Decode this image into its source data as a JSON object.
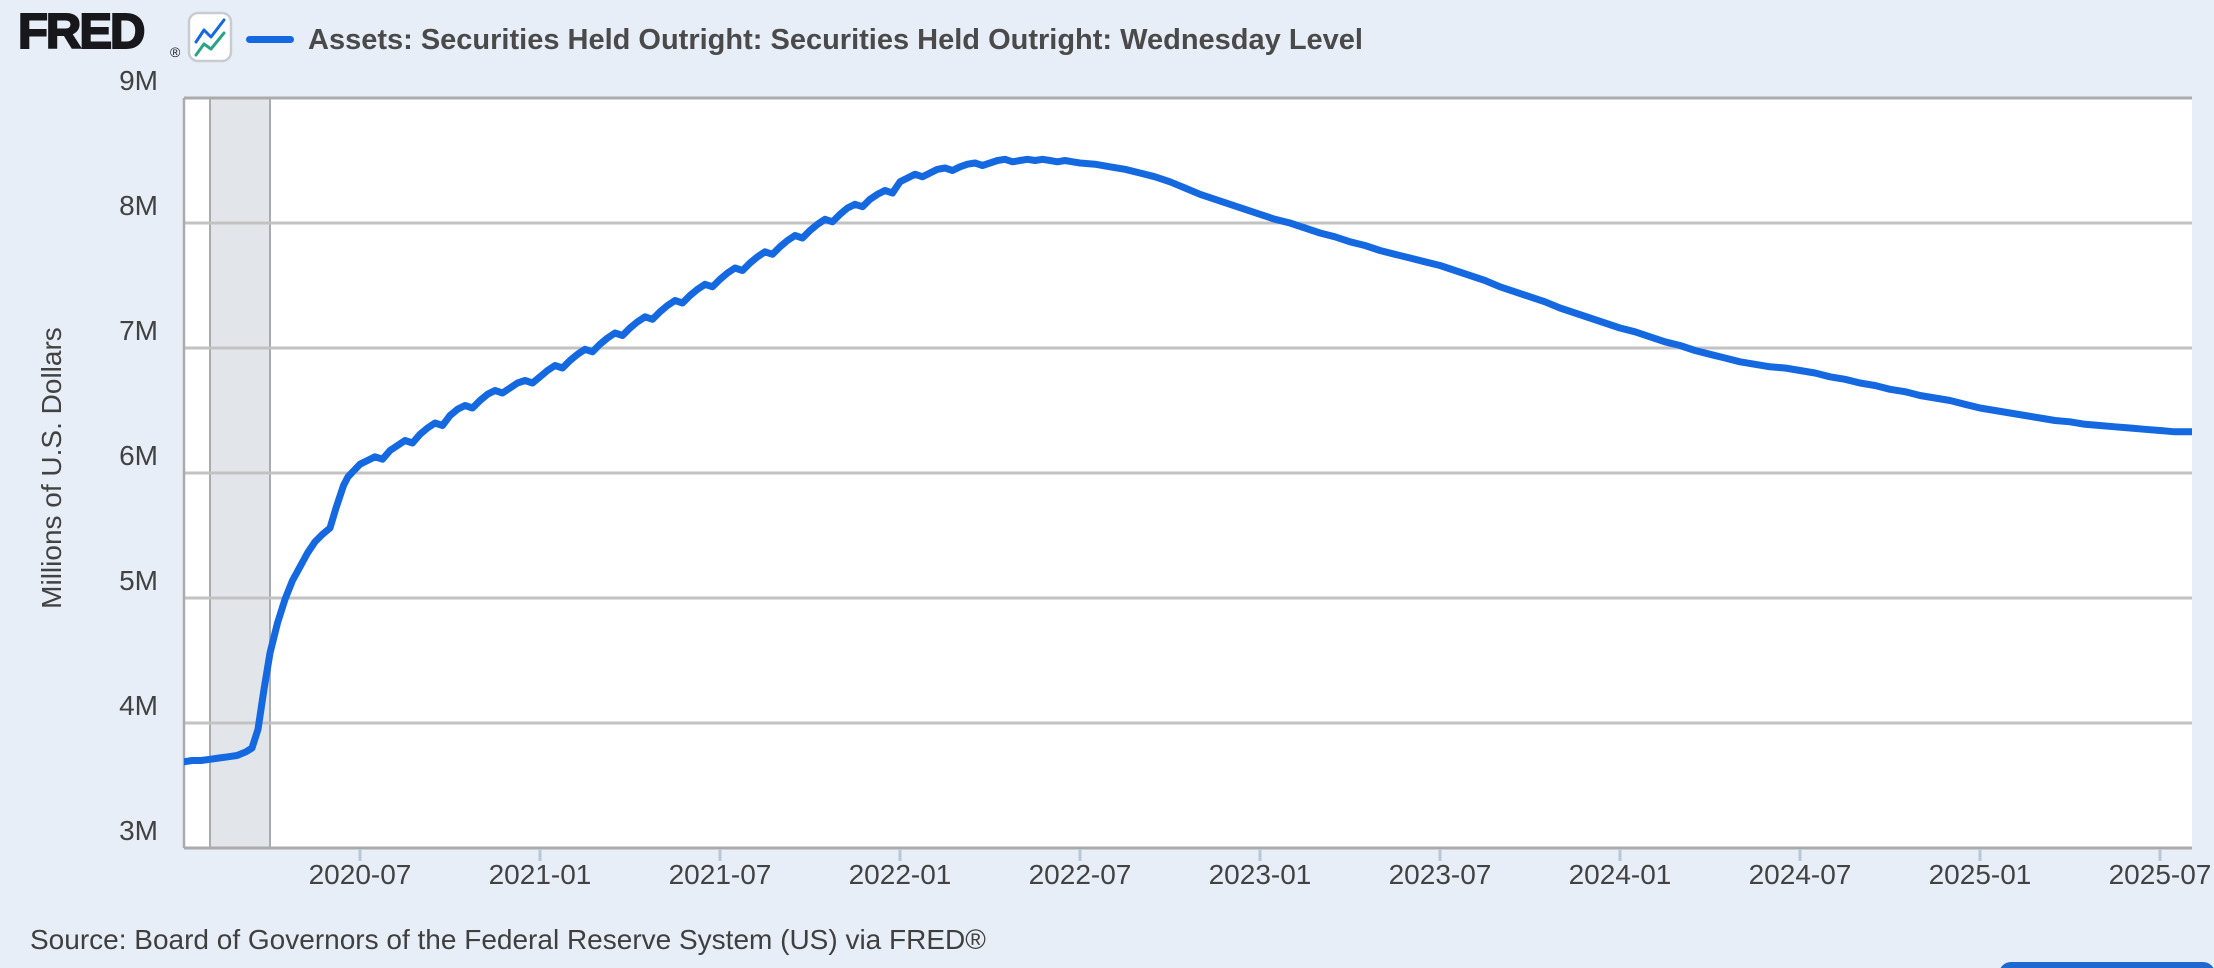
{
  "header": {
    "logo_text": "FRED",
    "logo_registered": "®",
    "title": "Assets: Securities Held Outright: Securities Held Outright: Wednesday Level"
  },
  "footer": {
    "source_text": "Source: Board of Governors of the Federal Reserve System (US) via FRED®"
  },
  "colors": {
    "page_background": "#e7eef7",
    "plot_background": "#ffffff",
    "series_line": "#1569e0",
    "icon_teal": "#2aa389",
    "gridline": "#c2c2c2",
    "plot_border": "#ababab",
    "recession_band_fill": "#e2e6ea",
    "recession_band_edge": "#a7acb1",
    "axis_tick": "#b9c7d6",
    "text": "#424242",
    "button_blue": "#1e68d2"
  },
  "chart_data": {
    "type": "line",
    "title": "Assets: Securities Held Outright: Securities Held Outright: Wednesday Level",
    "xlabel": "",
    "ylabel": "Millions of U.S. Dollars",
    "x_epoch_month": "2020-01",
    "x_range_months": [
      0.13,
      67.07
    ],
    "ylim": [
      3000000,
      9000000
    ],
    "grid": "horizontal-only",
    "legend_position": "top-left",
    "units": "Millions of U.S. Dollars, M = millions of millions label shorthand",
    "y_ticks": [
      {
        "label": "9M",
        "value": 9
      },
      {
        "label": "8M",
        "value": 8
      },
      {
        "label": "7M",
        "value": 7
      },
      {
        "label": "6M",
        "value": 6
      },
      {
        "label": "5M",
        "value": 5
      },
      {
        "label": "4M",
        "value": 4
      },
      {
        "label": "3M",
        "value": 3
      }
    ],
    "x_ticks": [
      {
        "label": "2020-07",
        "month": 6
      },
      {
        "label": "2021-01",
        "month": 12
      },
      {
        "label": "2021-07",
        "month": 18
      },
      {
        "label": "2022-01",
        "month": 24
      },
      {
        "label": "2022-07",
        "month": 30
      },
      {
        "label": "2023-01",
        "month": 36
      },
      {
        "label": "2023-07",
        "month": 42
      },
      {
        "label": "2024-01",
        "month": 48
      },
      {
        "label": "2024-07",
        "month": 54
      },
      {
        "label": "2025-01",
        "month": 60
      },
      {
        "label": "2025-07",
        "month": 66
      }
    ],
    "recession_band_months": {
      "start": 1,
      "end": 3,
      "note": "Feb 2020 - Apr 2020 shaded band"
    },
    "series": [
      {
        "name": "Assets: Securities Held Outright: Securities Held Outright: Wednesday Level",
        "color": "#1569e0",
        "points_format": [
          "months_since_2020_01",
          "millions_of_usd_in_M"
        ],
        "points": [
          [
            0.13,
            3.69
          ],
          [
            0.4,
            3.7
          ],
          [
            0.7,
            3.7
          ],
          [
            1.0,
            3.71
          ],
          [
            1.3,
            3.72
          ],
          [
            1.6,
            3.73
          ],
          [
            1.9,
            3.74
          ],
          [
            2.2,
            3.77
          ],
          [
            2.4,
            3.8
          ],
          [
            2.6,
            3.95
          ],
          [
            2.8,
            4.27
          ],
          [
            3.0,
            4.56
          ],
          [
            3.25,
            4.8
          ],
          [
            3.5,
            4.99
          ],
          [
            3.75,
            5.14
          ],
          [
            4.0,
            5.25
          ],
          [
            4.25,
            5.36
          ],
          [
            4.5,
            5.45
          ],
          [
            4.75,
            5.51
          ],
          [
            5.0,
            5.56
          ],
          [
            5.2,
            5.72
          ],
          [
            5.45,
            5.9
          ],
          [
            5.6,
            5.97
          ],
          [
            5.8,
            6.02
          ],
          [
            6.0,
            6.07
          ],
          [
            6.25,
            6.1
          ],
          [
            6.5,
            6.13
          ],
          [
            6.75,
            6.11
          ],
          [
            7.0,
            6.18
          ],
          [
            7.25,
            6.22
          ],
          [
            7.5,
            6.26
          ],
          [
            7.75,
            6.24
          ],
          [
            8.0,
            6.31
          ],
          [
            8.25,
            6.36
          ],
          [
            8.5,
            6.4
          ],
          [
            8.75,
            6.38
          ],
          [
            9.0,
            6.46
          ],
          [
            9.25,
            6.51
          ],
          [
            9.5,
            6.54
          ],
          [
            9.75,
            6.52
          ],
          [
            10.0,
            6.58
          ],
          [
            10.25,
            6.63
          ],
          [
            10.5,
            6.66
          ],
          [
            10.75,
            6.64
          ],
          [
            11.0,
            6.68
          ],
          [
            11.25,
            6.72
          ],
          [
            11.5,
            6.74
          ],
          [
            11.75,
            6.72
          ],
          [
            12.0,
            6.77
          ],
          [
            12.25,
            6.82
          ],
          [
            12.5,
            6.86
          ],
          [
            12.75,
            6.84
          ],
          [
            13.0,
            6.9
          ],
          [
            13.25,
            6.95
          ],
          [
            13.5,
            6.99
          ],
          [
            13.75,
            6.97
          ],
          [
            14.0,
            7.03
          ],
          [
            14.25,
            7.08
          ],
          [
            14.5,
            7.12
          ],
          [
            14.75,
            7.1
          ],
          [
            15.0,
            7.16
          ],
          [
            15.25,
            7.21
          ],
          [
            15.5,
            7.25
          ],
          [
            15.75,
            7.23
          ],
          [
            16.0,
            7.29
          ],
          [
            16.25,
            7.34
          ],
          [
            16.5,
            7.38
          ],
          [
            16.75,
            7.36
          ],
          [
            17.0,
            7.42
          ],
          [
            17.25,
            7.47
          ],
          [
            17.5,
            7.51
          ],
          [
            17.75,
            7.49
          ],
          [
            18.0,
            7.55
          ],
          [
            18.25,
            7.6
          ],
          [
            18.5,
            7.64
          ],
          [
            18.75,
            7.62
          ],
          [
            19.0,
            7.68
          ],
          [
            19.25,
            7.73
          ],
          [
            19.5,
            7.77
          ],
          [
            19.75,
            7.75
          ],
          [
            20.0,
            7.81
          ],
          [
            20.25,
            7.86
          ],
          [
            20.5,
            7.9
          ],
          [
            20.75,
            7.88
          ],
          [
            21.0,
            7.94
          ],
          [
            21.25,
            7.99
          ],
          [
            21.5,
            8.03
          ],
          [
            21.75,
            8.01
          ],
          [
            22.0,
            8.07
          ],
          [
            22.25,
            8.12
          ],
          [
            22.5,
            8.15
          ],
          [
            22.75,
            8.13
          ],
          [
            23.0,
            8.19
          ],
          [
            23.25,
            8.23
          ],
          [
            23.5,
            8.26
          ],
          [
            23.75,
            8.24
          ],
          [
            24.0,
            8.33
          ],
          [
            24.25,
            8.36
          ],
          [
            24.5,
            8.39
          ],
          [
            24.75,
            8.37
          ],
          [
            25.0,
            8.4
          ],
          [
            25.25,
            8.43
          ],
          [
            25.5,
            8.44
          ],
          [
            25.75,
            8.42
          ],
          [
            26.0,
            8.45
          ],
          [
            26.25,
            8.47
          ],
          [
            26.5,
            8.48
          ],
          [
            26.75,
            8.46
          ],
          [
            27.0,
            8.48
          ],
          [
            27.25,
            8.5
          ],
          [
            27.5,
            8.51
          ],
          [
            27.75,
            8.49
          ],
          [
            28.0,
            8.5
          ],
          [
            28.25,
            8.51
          ],
          [
            28.5,
            8.5
          ],
          [
            28.75,
            8.51
          ],
          [
            29.0,
            8.5
          ],
          [
            29.25,
            8.49
          ],
          [
            29.5,
            8.5
          ],
          [
            29.75,
            8.49
          ],
          [
            30.0,
            8.48
          ],
          [
            30.5,
            8.47
          ],
          [
            31.0,
            8.45
          ],
          [
            31.5,
            8.43
          ],
          [
            32.0,
            8.4
          ],
          [
            32.5,
            8.37
          ],
          [
            33.0,
            8.33
          ],
          [
            33.5,
            8.28
          ],
          [
            34.0,
            8.23
          ],
          [
            34.5,
            8.19
          ],
          [
            35.0,
            8.15
          ],
          [
            35.5,
            8.11
          ],
          [
            36.0,
            8.07
          ],
          [
            36.5,
            8.03
          ],
          [
            37.0,
            8.0
          ],
          [
            37.5,
            7.96
          ],
          [
            38.0,
            7.92
          ],
          [
            38.5,
            7.89
          ],
          [
            39.0,
            7.85
          ],
          [
            39.5,
            7.82
          ],
          [
            40.0,
            7.78
          ],
          [
            40.5,
            7.75
          ],
          [
            41.0,
            7.72
          ],
          [
            41.5,
            7.69
          ],
          [
            42.0,
            7.66
          ],
          [
            42.5,
            7.62
          ],
          [
            43.0,
            7.58
          ],
          [
            43.5,
            7.54
          ],
          [
            44.0,
            7.49
          ],
          [
            44.5,
            7.45
          ],
          [
            45.0,
            7.41
          ],
          [
            45.5,
            7.37
          ],
          [
            46.0,
            7.32
          ],
          [
            46.5,
            7.28
          ],
          [
            47.0,
            7.24
          ],
          [
            47.5,
            7.2
          ],
          [
            48.0,
            7.16
          ],
          [
            48.5,
            7.13
          ],
          [
            49.0,
            7.09
          ],
          [
            49.5,
            7.05
          ],
          [
            50.0,
            7.02
          ],
          [
            50.5,
            6.98
          ],
          [
            51.0,
            6.95
          ],
          [
            51.5,
            6.92
          ],
          [
            52.0,
            6.89
          ],
          [
            52.5,
            6.87
          ],
          [
            53.0,
            6.85
          ],
          [
            53.5,
            6.84
          ],
          [
            54.0,
            6.82
          ],
          [
            54.5,
            6.8
          ],
          [
            55.0,
            6.77
          ],
          [
            55.5,
            6.75
          ],
          [
            56.0,
            6.72
          ],
          [
            56.5,
            6.7
          ],
          [
            57.0,
            6.67
          ],
          [
            57.5,
            6.65
          ],
          [
            58.0,
            6.62
          ],
          [
            58.5,
            6.6
          ],
          [
            59.0,
            6.58
          ],
          [
            59.5,
            6.55
          ],
          [
            60.0,
            6.52
          ],
          [
            60.5,
            6.5
          ],
          [
            61.0,
            6.48
          ],
          [
            61.5,
            6.46
          ],
          [
            62.0,
            6.44
          ],
          [
            62.5,
            6.42
          ],
          [
            63.0,
            6.41
          ],
          [
            63.5,
            6.39
          ],
          [
            64.0,
            6.38
          ],
          [
            64.5,
            6.37
          ],
          [
            65.0,
            6.36
          ],
          [
            65.5,
            6.35
          ],
          [
            66.0,
            6.34
          ],
          [
            66.5,
            6.33
          ],
          [
            67.07,
            6.33
          ]
        ]
      }
    ]
  }
}
